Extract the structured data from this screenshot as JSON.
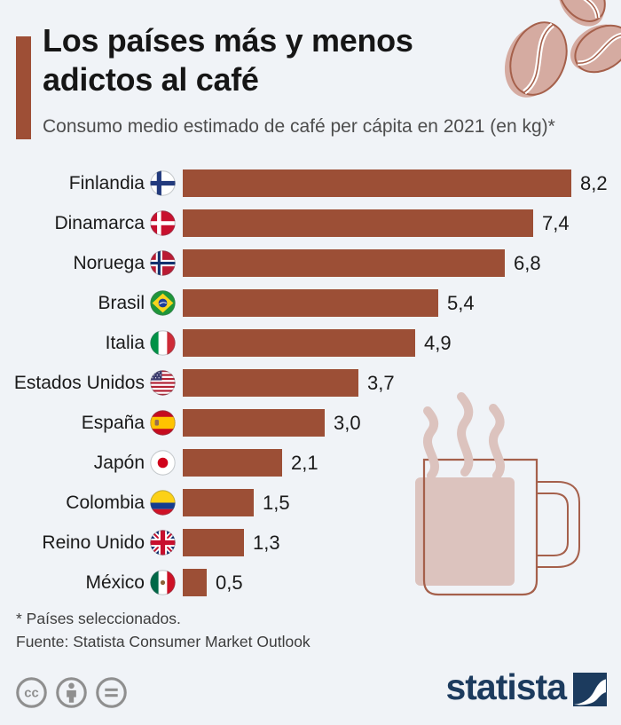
{
  "header": {
    "title_line1": "Los países más y menos",
    "title_line2": "adictos al café",
    "subtitle": "Consumo medio estimado de café per cápita en 2021 (en kg)*"
  },
  "chart_data": {
    "type": "bar",
    "orientation": "horizontal",
    "title": "Los países más y menos adictos al café",
    "subtitle": "Consumo medio estimado de café per cápita en 2021 (en kg)*",
    "categories": [
      "Finlandia",
      "Dinamarca",
      "Noruega",
      "Brasil",
      "Italia",
      "Estados Unidos",
      "España",
      "Japón",
      "Colombia",
      "Reino Unido",
      "México"
    ],
    "values": [
      8.2,
      7.4,
      6.8,
      5.4,
      4.9,
      3.7,
      3.0,
      2.1,
      1.5,
      1.3,
      0.5
    ],
    "value_labels": [
      "8,2",
      "7,4",
      "6,8",
      "5,4",
      "4,9",
      "3,7",
      "3,0",
      "2,1",
      "1,5",
      "1,3",
      "0,5"
    ],
    "flags": [
      "fi",
      "dk",
      "no",
      "br",
      "it",
      "us",
      "es",
      "jp",
      "co",
      "gb",
      "mx"
    ],
    "bar_color": "#9c4f36",
    "xlim": [
      0,
      8.2
    ],
    "grid": false,
    "legend": false
  },
  "footer": {
    "footnote": "* Países seleccionados.",
    "source": "Fuente: Statista Consumer Market Outlook",
    "brand": "statista",
    "license_icons": [
      "cc-icon",
      "attribution-icon",
      "equals-icon"
    ]
  },
  "colors": {
    "background": "#f0f3f7",
    "bar": "#9c4f36",
    "accent_bar": "#9e4f36",
    "title_text": "#161616",
    "subtitle_text": "#4d4d4d",
    "brand_navy": "#1c3b5e",
    "illustration_fill": "#d5aba1",
    "illustration_stroke": "#a5604b",
    "steam_coffee_fill": "#dcc3be"
  }
}
